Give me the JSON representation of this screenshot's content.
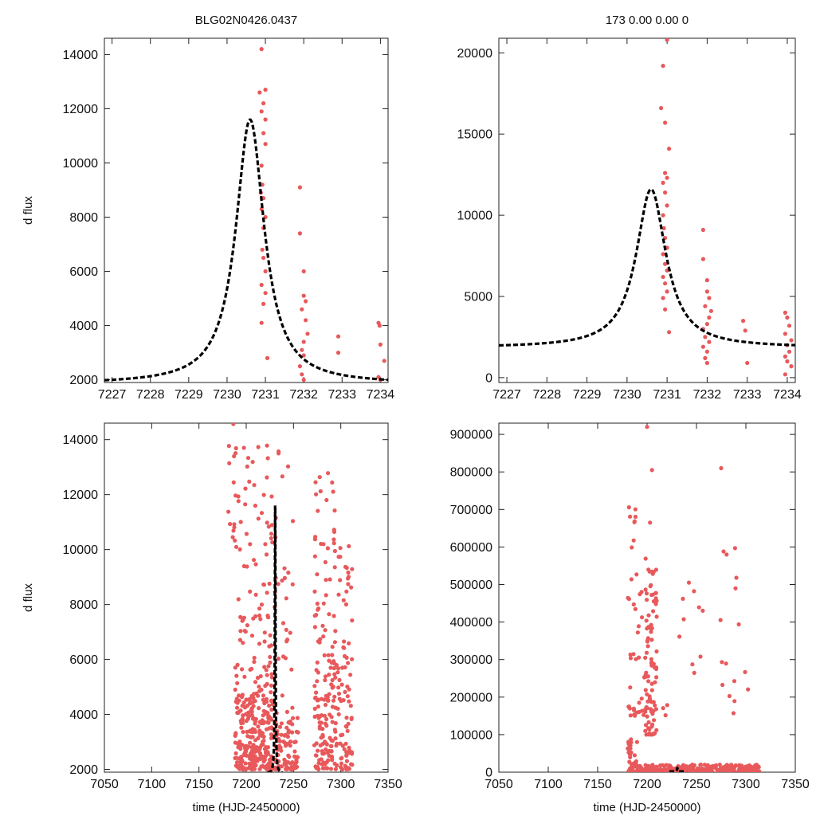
{
  "colors": {
    "points": "#e8595b",
    "model": "#000000",
    "frame": "#222222"
  },
  "chart_data": [
    {
      "id": "top-left",
      "type": "scatter",
      "title": "BLG02N0426.0437",
      "xlabel": "",
      "ylabel": "d flux",
      "xlim": [
        7226.8,
        7234.2
      ],
      "ylim": [
        1900,
        14600
      ],
      "xticks": [
        7227,
        7228,
        7229,
        7230,
        7231,
        7232,
        7233,
        7234
      ],
      "yticks": [
        2000,
        4000,
        6000,
        8000,
        10000,
        12000,
        14000
      ],
      "model": {
        "name": "model curve",
        "t0": 7230.6,
        "peak": 11600,
        "base": 1850,
        "width": 0.45
      },
      "series": [
        {
          "name": "observations",
          "points": [
            [
              7230.9,
              14200
            ],
            [
              7230.85,
              12600
            ],
            [
              7231.0,
              12700
            ],
            [
              7230.95,
              12200
            ],
            [
              7230.9,
              11900
            ],
            [
              7231.0,
              11600
            ],
            [
              7230.95,
              11100
            ],
            [
              7231.0,
              10700
            ],
            [
              7230.9,
              9900
            ],
            [
              7230.92,
              9200
            ],
            [
              7230.88,
              8900
            ],
            [
              7230.95,
              8700
            ],
            [
              7230.9,
              8300
            ],
            [
              7231.0,
              8000
            ],
            [
              7230.95,
              7600
            ],
            [
              7230.92,
              6800
            ],
            [
              7230.95,
              6500
            ],
            [
              7231.0,
              6000
            ],
            [
              7230.9,
              5500
            ],
            [
              7231.0,
              5200
            ],
            [
              7230.95,
              4800
            ],
            [
              7230.9,
              4100
            ],
            [
              7231.05,
              2800
            ],
            [
              7231.9,
              9100
            ],
            [
              7231.9,
              7400
            ],
            [
              7232.0,
              6000
            ],
            [
              7232.0,
              5100
            ],
            [
              7232.05,
              4900
            ],
            [
              7231.95,
              4600
            ],
            [
              7232.05,
              4200
            ],
            [
              7232.1,
              3700
            ],
            [
              7232.0,
              3400
            ],
            [
              7231.95,
              3100
            ],
            [
              7232.0,
              2900
            ],
            [
              7231.9,
              2500
            ],
            [
              7231.95,
              2200
            ],
            [
              7232.0,
              2000
            ],
            [
              7232.9,
              3600
            ],
            [
              7232.9,
              3000
            ],
            [
              7233.95,
              4100
            ],
            [
              7233.98,
              4000
            ],
            [
              7234.0,
              3300
            ],
            [
              7234.1,
              2700
            ],
            [
              7233.95,
              2100
            ],
            [
              7234.0,
              2000
            ]
          ]
        }
      ]
    },
    {
      "id": "top-right",
      "type": "scatter",
      "title": "173  0.00  0.00  0",
      "xlabel": "",
      "ylabel": "",
      "xlim": [
        7226.8,
        7234.2
      ],
      "ylim": [
        -300,
        20900
      ],
      "xticks": [
        7227,
        7228,
        7229,
        7230,
        7231,
        7232,
        7233,
        7234
      ],
      "yticks": [
        0,
        5000,
        10000,
        15000,
        20000
      ],
      "model": {
        "name": "model curve",
        "t0": 7230.6,
        "peak": 11600,
        "base": 1850,
        "width": 0.45
      },
      "series": [
        {
          "name": "observations",
          "points": [
            [
              7231.0,
              20800
            ],
            [
              7230.9,
              19200
            ],
            [
              7230.85,
              16600
            ],
            [
              7230.95,
              15700
            ],
            [
              7231.05,
              14100
            ],
            [
              7230.95,
              12600
            ],
            [
              7231.0,
              12300
            ],
            [
              7230.9,
              12000
            ],
            [
              7230.95,
              11400
            ],
            [
              7231.0,
              10600
            ],
            [
              7230.9,
              10000
            ],
            [
              7230.92,
              9200
            ],
            [
              7230.95,
              8600
            ],
            [
              7231.0,
              8000
            ],
            [
              7230.9,
              7600
            ],
            [
              7230.95,
              7000
            ],
            [
              7231.0,
              6600
            ],
            [
              7230.9,
              6200
            ],
            [
              7230.95,
              5800
            ],
            [
              7231.0,
              5300
            ],
            [
              7230.9,
              4900
            ],
            [
              7230.95,
              4200
            ],
            [
              7231.05,
              2800
            ],
            [
              7231.9,
              9100
            ],
            [
              7231.9,
              7300
            ],
            [
              7232.0,
              6000
            ],
            [
              7232.0,
              5300
            ],
            [
              7232.05,
              4900
            ],
            [
              7231.95,
              4400
            ],
            [
              7232.1,
              4100
            ],
            [
              7232.05,
              3700
            ],
            [
              7232.0,
              3300
            ],
            [
              7231.9,
              3000
            ],
            [
              7231.95,
              2500
            ],
            [
              7232.05,
              2200
            ],
            [
              7231.9,
              1900
            ],
            [
              7232.0,
              1600
            ],
            [
              7231.95,
              1200
            ],
            [
              7232.0,
              900
            ],
            [
              7232.9,
              3500
            ],
            [
              7232.95,
              2900
            ],
            [
              7233.0,
              900
            ],
            [
              7233.95,
              4000
            ],
            [
              7234.0,
              3700
            ],
            [
              7234.05,
              3200
            ],
            [
              7233.95,
              2700
            ],
            [
              7234.1,
              2300
            ],
            [
              7234.0,
              2000
            ],
            [
              7234.05,
              1600
            ],
            [
              7233.95,
              1300
            ],
            [
              7234.0,
              1000
            ],
            [
              7234.1,
              700
            ],
            [
              7233.95,
              200
            ]
          ]
        }
      ]
    },
    {
      "id": "bottom-left",
      "type": "scatter",
      "title": "",
      "xlabel": "time (HJD-2450000)",
      "ylabel": "d flux",
      "xlim": [
        7050,
        7350
      ],
      "ylim": [
        1900,
        14600
      ],
      "xticks": [
        7050,
        7100,
        7150,
        7200,
        7250,
        7300,
        7350
      ],
      "yticks": [
        2000,
        4000,
        6000,
        8000,
        10000,
        12000,
        14000
      ],
      "model": {
        "name": "model curve",
        "t0": 7230.6,
        "peak": 11600,
        "base": 1850,
        "width": 0.45
      },
      "series": [
        {
          "name": "observations",
          "clusters": [
            {
              "x": [
                7180,
                7190
              ],
              "y": [
                10000,
                14600
              ],
              "n": 14
            },
            {
              "x": [
                7188,
                7215
              ],
              "y": [
                2000,
                4500
              ],
              "n": 160
            },
            {
              "x": [
                7188,
                7215
              ],
              "y": [
                4500,
                14300
              ],
              "n": 70
            },
            {
              "x": [
                7215,
                7228
              ],
              "y": [
                2000,
                4500
              ],
              "n": 80
            },
            {
              "x": [
                7215,
                7228
              ],
              "y": [
                4500,
                14300
              ],
              "n": 45
            },
            {
              "x": [
                7230,
                7255
              ],
              "y": [
                2000,
                4000
              ],
              "n": 90
            },
            {
              "x": [
                7230,
                7250
              ],
              "y": [
                4000,
                14000
              ],
              "n": 30
            },
            {
              "x": [
                7272,
                7292
              ],
              "y": [
                2000,
                4500
              ],
              "n": 70
            },
            {
              "x": [
                7272,
                7295
              ],
              "y": [
                4500,
                13200
              ],
              "n": 80
            },
            {
              "x": [
                7292,
                7312
              ],
              "y": [
                2000,
                5000
              ],
              "n": 60
            },
            {
              "x": [
                7292,
                7312
              ],
              "y": [
                5000,
                11000
              ],
              "n": 40
            }
          ]
        }
      ]
    },
    {
      "id": "bottom-right",
      "type": "scatter",
      "title": "",
      "xlabel": "time (HJD-2450000)",
      "ylabel": "",
      "xlim": [
        7050,
        7350
      ],
      "ylim": [
        0,
        930000
      ],
      "xticks": [
        7050,
        7100,
        7150,
        7200,
        7250,
        7300,
        7350
      ],
      "yticks": [
        0,
        100000,
        200000,
        300000,
        400000,
        500000,
        600000,
        700000,
        800000,
        900000
      ],
      "model": {
        "name": "model curve",
        "t0": 7230.6,
        "peak": 11600,
        "base": 1850,
        "width": 0.45
      },
      "series": [
        {
          "name": "observations",
          "clusters": [
            {
              "x": [
                7180,
                7190
              ],
              "y": [
                0,
                100000
              ],
              "n": 45
            },
            {
              "x": [
                7180,
                7190
              ],
              "y": [
                150000,
                710000
              ],
              "n": 28
            },
            {
              "x": [
                7190,
                7200
              ],
              "y": [
                150000,
                500000
              ],
              "n": 16
            },
            {
              "x": [
                7198,
                7210
              ],
              "y": [
                100000,
                580000
              ],
              "n": 90
            },
            {
              "x": [
                7190,
                7315
              ],
              "y": [
                0,
                20000
              ],
              "n": 260
            },
            {
              "x": [
                7210,
                7222
              ],
              "y": [
                150000,
                180000
              ],
              "n": 3
            },
            {
              "x": [
                7230,
                7262
              ],
              "y": [
                260000,
                520000
              ],
              "n": 10
            },
            {
              "x": [
                7272,
                7305
              ],
              "y": [
                140000,
                600000
              ],
              "n": 16
            }
          ],
          "points": [
            [
              7200,
              920000
            ],
            [
              7205,
              805000
            ],
            [
              7275,
              810000
            ],
            [
              7203,
              665000
            ]
          ]
        }
      ]
    }
  ]
}
